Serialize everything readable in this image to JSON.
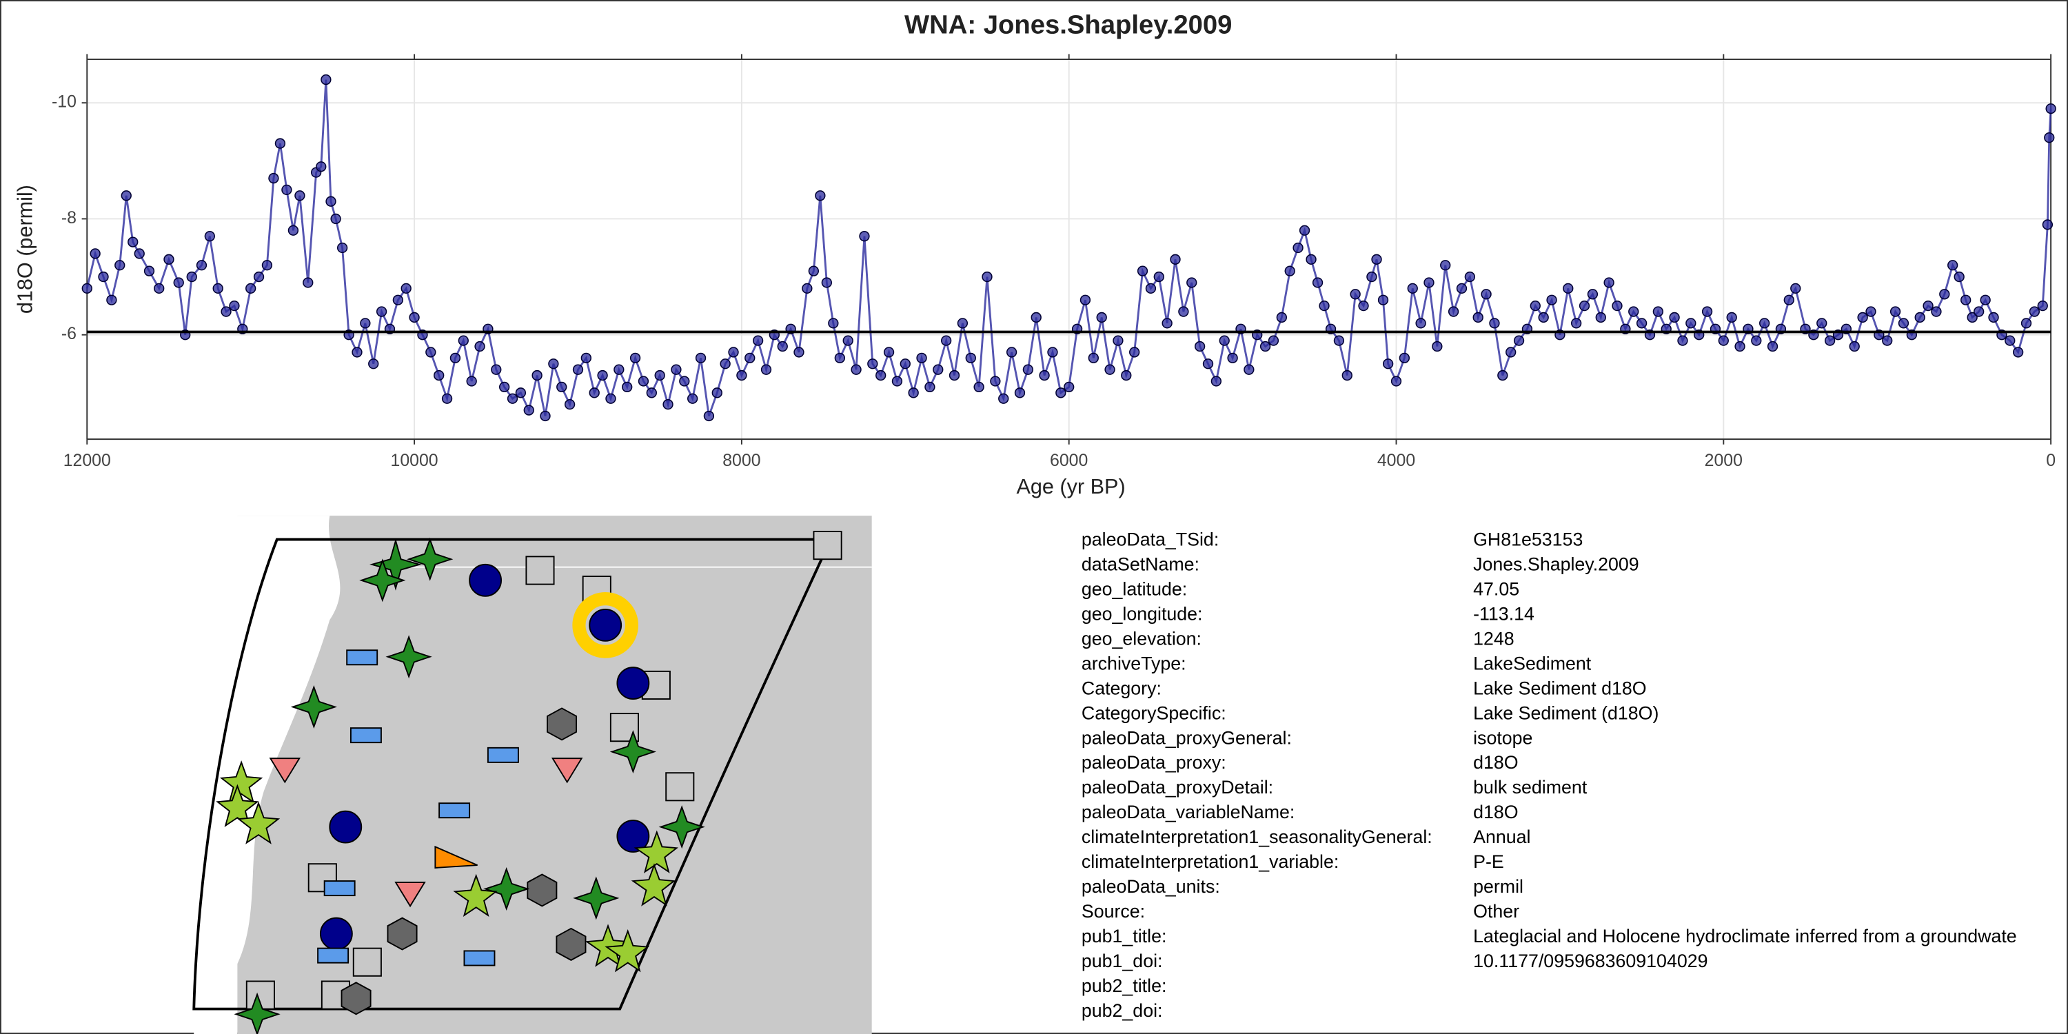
{
  "chart_data": {
    "type": "line",
    "title": "WNA: Jones.Shapley.2009",
    "x_label": "Age (yr BP)",
    "y_label": "d18O (permil)",
    "xlim": [
      12000,
      0
    ],
    "xticks": [
      12000,
      10000,
      8000,
      6000,
      4000,
      2000,
      0
    ],
    "ylim": [
      -4.2,
      -10.75
    ],
    "yticks": [
      -10,
      -8,
      -6
    ],
    "grid": true,
    "hline": -6.05,
    "x": [
      12000,
      11950,
      11900,
      11850,
      11800,
      11760,
      11720,
      11680,
      11620,
      11560,
      11500,
      11440,
      11400,
      11360,
      11300,
      11250,
      11200,
      11150,
      11100,
      11050,
      11000,
      10950,
      10900,
      10860,
      10820,
      10780,
      10740,
      10700,
      10650,
      10600,
      10570,
      10540,
      10510,
      10480,
      10440,
      10400,
      10350,
      10300,
      10250,
      10200,
      10150,
      10100,
      10050,
      10000,
      9950,
      9900,
      9850,
      9800,
      9750,
      9700,
      9650,
      9600,
      9550,
      9500,
      9450,
      9400,
      9350,
      9300,
      9250,
      9200,
      9150,
      9100,
      9050,
      9000,
      8950,
      8900,
      8850,
      8800,
      8750,
      8700,
      8650,
      8600,
      8550,
      8500,
      8450,
      8400,
      8350,
      8300,
      8250,
      8200,
      8150,
      8100,
      8050,
      8000,
      7950,
      7900,
      7850,
      7800,
      7750,
      7700,
      7650,
      7600,
      7560,
      7520,
      7480,
      7440,
      7400,
      7350,
      7300,
      7250,
      7200,
      7150,
      7100,
      7050,
      7000,
      6950,
      6900,
      6850,
      6800,
      6750,
      6700,
      6650,
      6600,
      6550,
      6500,
      6450,
      6400,
      6350,
      6300,
      6250,
      6200,
      6150,
      6100,
      6050,
      6000,
      5950,
      5900,
      5850,
      5800,
      5750,
      5700,
      5650,
      5600,
      5550,
      5500,
      5450,
      5400,
      5350,
      5300,
      5250,
      5200,
      5150,
      5100,
      5050,
      5000,
      4950,
      4900,
      4850,
      4800,
      4750,
      4700,
      4650,
      4600,
      4560,
      4520,
      4480,
      4440,
      4400,
      4350,
      4300,
      4250,
      4200,
      4150,
      4120,
      4080,
      4050,
      4000,
      3950,
      3900,
      3850,
      3800,
      3750,
      3700,
      3650,
      3600,
      3550,
      3500,
      3450,
      3400,
      3350,
      3300,
      3250,
      3200,
      3150,
      3100,
      3050,
      3000,
      2950,
      2900,
      2850,
      2800,
      2750,
      2700,
      2650,
      2600,
      2550,
      2500,
      2450,
      2400,
      2350,
      2300,
      2250,
      2200,
      2150,
      2100,
      2050,
      2000,
      1950,
      1900,
      1850,
      1800,
      1750,
      1700,
      1650,
      1600,
      1560,
      1500,
      1450,
      1400,
      1350,
      1300,
      1250,
      1200,
      1150,
      1100,
      1050,
      1000,
      950,
      900,
      850,
      800,
      750,
      700,
      650,
      600,
      560,
      520,
      480,
      440,
      400,
      350,
      300,
      250,
      200,
      150,
      100,
      50,
      20,
      10,
      0
    ],
    "series": [
      {
        "color": "#2b2b9e",
        "values": [
          -6.8,
          -7.4,
          -7.0,
          -6.6,
          -7.2,
          -8.4,
          -7.6,
          -7.4,
          -7.1,
          -6.8,
          -7.3,
          -6.9,
          -6.0,
          -7.0,
          -7.2,
          -7.7,
          -6.8,
          -6.4,
          -6.5,
          -6.1,
          -6.8,
          -7.0,
          -7.2,
          -8.7,
          -9.3,
          -8.5,
          -7.8,
          -8.4,
          -6.9,
          -8.8,
          -8.9,
          -10.4,
          -8.3,
          -8.0,
          -7.5,
          -6.0,
          -5.7,
          -6.2,
          -5.5,
          -6.4,
          -6.1,
          -6.6,
          -6.8,
          -6.3,
          -6.0,
          -5.7,
          -5.3,
          -4.9,
          -5.6,
          -5.9,
          -5.2,
          -5.8,
          -6.1,
          -5.4,
          -5.1,
          -4.9,
          -5.0,
          -4.7,
          -5.3,
          -4.6,
          -5.5,
          -5.1,
          -4.8,
          -5.4,
          -5.6,
          -5.0,
          -5.3,
          -4.9,
          -5.4,
          -5.1,
          -5.6,
          -5.2,
          -5.0,
          -5.3,
          -4.8,
          -5.4,
          -5.2,
          -4.9,
          -5.6,
          -4.6,
          -5.0,
          -5.5,
          -5.7,
          -5.3,
          -5.6,
          -5.9,
          -5.4,
          -6.0,
          -5.8,
          -6.1,
          -5.7,
          -6.8,
          -7.1,
          -8.4,
          -6.9,
          -6.2,
          -5.6,
          -5.9,
          -5.4,
          -7.7,
          -5.5,
          -5.3,
          -5.7,
          -5.2,
          -5.5,
          -5.0,
          -5.6,
          -5.1,
          -5.4,
          -5.9,
          -5.3,
          -6.2,
          -5.6,
          -5.1,
          -7.0,
          -5.2,
          -4.9,
          -5.7,
          -5.0,
          -5.4,
          -6.3,
          -5.3,
          -5.7,
          -5.0,
          -5.1,
          -6.1,
          -6.6,
          -5.6,
          -6.3,
          -5.4,
          -5.9,
          -5.3,
          -5.7,
          -7.1,
          -6.8,
          -7.0,
          -6.2,
          -7.3,
          -6.4,
          -6.9,
          -5.8,
          -5.5,
          -5.2,
          -5.9,
          -5.6,
          -6.1,
          -5.4,
          -6.0,
          -5.8,
          -5.9,
          -6.3,
          -7.1,
          -7.5,
          -7.8,
          -7.3,
          -6.9,
          -6.5,
          -6.1,
          -5.9,
          -5.3,
          -6.7,
          -6.5,
          -7.0,
          -7.3,
          -6.6,
          -5.5,
          -5.2,
          -5.6,
          -6.8,
          -6.2,
          -6.9,
          -5.8,
          -7.2,
          -6.4,
          -6.8,
          -7.0,
          -6.3,
          -6.7,
          -6.2,
          -5.3,
          -5.7,
          -5.9,
          -6.1,
          -6.5,
          -6.3,
          -6.6,
          -6.0,
          -6.8,
          -6.2,
          -6.5,
          -6.7,
          -6.3,
          -6.9,
          -6.5,
          -6.1,
          -6.4,
          -6.2,
          -6.0,
          -6.4,
          -6.1,
          -6.3,
          -5.9,
          -6.2,
          -6.0,
          -6.4,
          -6.1,
          -5.9,
          -6.3,
          -5.8,
          -6.1,
          -5.9,
          -6.2,
          -5.8,
          -6.1,
          -6.6,
          -6.8,
          -6.1,
          -6.0,
          -6.2,
          -5.9,
          -6.0,
          -6.1,
          -5.8,
          -6.3,
          -6.4,
          -6.0,
          -5.9,
          -6.4,
          -6.2,
          -6.0,
          -6.3,
          -6.5,
          -6.4,
          -6.7,
          -7.2,
          -7.0,
          -6.6,
          -6.3,
          -6.4,
          -6.6,
          -6.3,
          -6.0,
          -5.9,
          -5.7,
          -6.2,
          -6.4,
          -6.5,
          -7.9,
          -9.4,
          -9.9
        ]
      }
    ]
  },
  "metadata": {
    "rows": [
      {
        "key": "paleoData_TSid:",
        "value": "GH81e53153"
      },
      {
        "key": "dataSetName:",
        "value": "Jones.Shapley.2009"
      },
      {
        "key": "geo_latitude:",
        "value": "47.05"
      },
      {
        "key": "geo_longitude:",
        "value": "-113.14"
      },
      {
        "key": "geo_elevation:",
        "value": "1248"
      },
      {
        "key": "archiveType:",
        "value": "LakeSediment"
      },
      {
        "key": "Category:",
        "value": "Lake Sediment d18O"
      },
      {
        "key": "CategorySpecific:",
        "value": "Lake Sediment (d18O)"
      },
      {
        "key": "paleoData_proxyGeneral:",
        "value": "isotope"
      },
      {
        "key": "paleoData_proxy:",
        "value": "d18O"
      },
      {
        "key": "paleoData_proxyDetail:",
        "value": "bulk sediment"
      },
      {
        "key": "paleoData_variableName:",
        "value": "d18O"
      },
      {
        "key": "climateInterpretation1_seasonalityGeneral:",
        "value": "Annual"
      },
      {
        "key": "climateInterpretation1_variable:",
        "value": "P-E"
      },
      {
        "key": "paleoData_units:",
        "value": "permil"
      },
      {
        "key": "Source:",
        "value": "Other"
      },
      {
        "key": "pub1_title:",
        "value": "Lateglacial and Holocene hydroclimate inferred from a groundwate"
      },
      {
        "key": "pub1_doi:",
        "value": "10.1177/0959683609104029"
      },
      {
        "key": "pub2_title:"
      },
      {
        "key": "pub2_doi:"
      }
    ]
  }
}
